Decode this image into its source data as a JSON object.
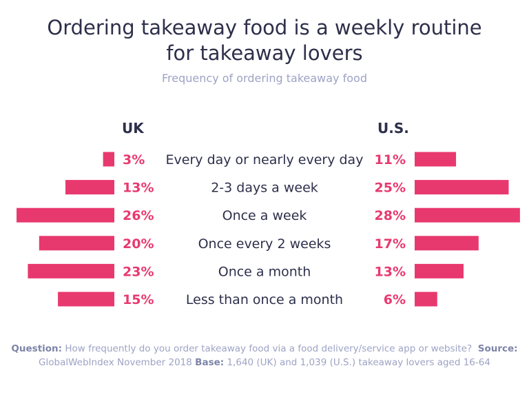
{
  "chart_data": {
    "type": "bar",
    "title": "Ordering takeaway food is a weekly routine for takeaway lovers",
    "title_lines": [
      "Ordering takeaway food is a weekly routine",
      "for takeaway lovers"
    ],
    "subtitle": "Frequency of ordering takeaway food",
    "categories": [
      "Every day or nearly every day",
      "2-3 days a week",
      "Once a week",
      "Once every 2 weeks",
      "Once a month",
      "Less than once a month"
    ],
    "series": [
      {
        "name": "UK",
        "values": [
          3,
          13,
          26,
          20,
          23,
          15
        ],
        "labels": [
          "3%",
          "13%",
          "26%",
          "20%",
          "23%",
          "15%"
        ]
      },
      {
        "name": "U.S.",
        "values": [
          11,
          25,
          28,
          17,
          13,
          6
        ],
        "labels": [
          "11%",
          "25%",
          "28%",
          "17%",
          "13%",
          "6%"
        ]
      }
    ],
    "unit": "%",
    "bar_color": "#e8396f",
    "grid": false
  },
  "footer": {
    "question_label": "Question:",
    "question": "How frequently do you order takeaway food via a food delivery/service app or website?",
    "source_label": "Source:",
    "source": "GlobalWebIndex November 2018",
    "base_label": "Base:",
    "base": "1,640 (UK) and 1,039 (U.S.) takeaway lovers aged 16-64"
  }
}
